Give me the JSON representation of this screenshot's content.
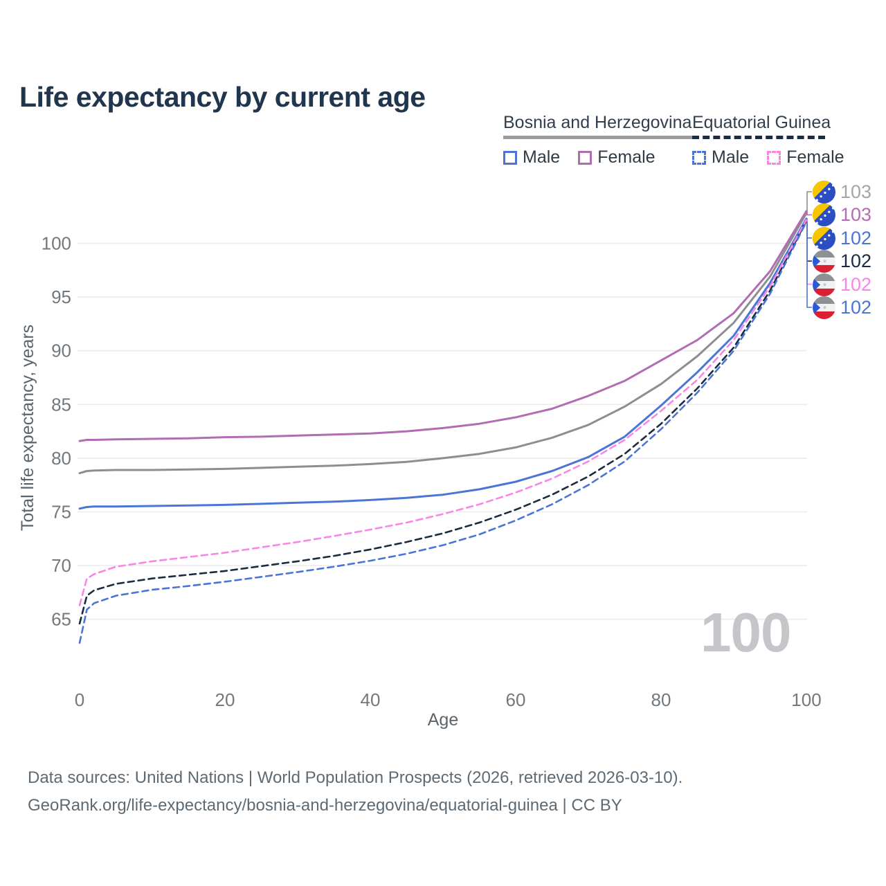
{
  "title": "Life expectancy by current age",
  "watermark": "100",
  "colors": {
    "title_text": "#20364e",
    "bih_male_blue": "#4a75d6",
    "bih_female_purple": "#b26cb2",
    "bih_all_gray": "#8e8e92",
    "eqg_male_blue": "#4a75d6",
    "eqg_female_pink": "#f986e3",
    "eqg_all_navy": "#1b2b40",
    "gridline": "#ececee",
    "tick_text": "#73787d",
    "axis_title_text": "#5c646b",
    "footer_text": "#5d6a73",
    "watermark_text": "#c5c6ca"
  },
  "legend": {
    "groups": [
      {
        "label": "Bosnia and Herzegovina",
        "underline_style": "solid",
        "underline_color": "#9b9ba0",
        "items": [
          {
            "label": "Male",
            "color": "#4a75d6",
            "dashed": false
          },
          {
            "label": "Female",
            "color": "#b26cb2",
            "dashed": false
          }
        ]
      },
      {
        "label": "Equatorial Guinea",
        "underline_style": "dashed",
        "underline_color": "#1b2b40",
        "items": [
          {
            "label": "Male",
            "color": "#4a75d6",
            "dashed": true
          },
          {
            "label": "Female",
            "color": "#f986e3",
            "dashed": true
          }
        ]
      }
    ]
  },
  "end_labels": [
    {
      "value": "103",
      "color": "#a5a5a5",
      "flag": "bosnia-and-herzegovina",
      "series_id": "bih-all"
    },
    {
      "value": "103",
      "color": "#b26cb2",
      "flag": "bosnia-and-herzegovina",
      "series_id": "bih-female"
    },
    {
      "value": "102",
      "color": "#4a75d6",
      "flag": "bosnia-and-herzegovina",
      "series_id": "bih-male"
    },
    {
      "value": "102",
      "color": "#1b2b40",
      "flag": "equatorial-guinea",
      "series_id": "eqg-all"
    },
    {
      "value": "102",
      "color": "#f986e3",
      "flag": "equatorial-guinea",
      "series_id": "eqg-female"
    },
    {
      "value": "102",
      "color": "#4a75d6",
      "flag": "equatorial-guinea",
      "series_id": "eqg-male"
    }
  ],
  "chart_data": {
    "type": "line",
    "title": "Life expectancy by current age",
    "xlabel": "Age",
    "ylabel": "Total life expectancy, years",
    "x_ticks": [
      0,
      20,
      40,
      60,
      80,
      100
    ],
    "y_ticks": [
      65,
      70,
      75,
      80,
      85,
      90,
      95,
      100
    ],
    "xlim": [
      0,
      100
    ],
    "ylim": [
      62,
      104
    ],
    "grid": "horizontal",
    "legend_position": "top-right",
    "x": [
      0,
      1,
      2,
      5,
      10,
      15,
      20,
      25,
      30,
      35,
      40,
      45,
      50,
      55,
      60,
      65,
      70,
      75,
      80,
      85,
      90,
      95,
      100
    ],
    "series": [
      {
        "id": "bih-all",
        "country": "Bosnia and Herzegovina",
        "group": "All",
        "color": "#8e8e92",
        "dashed": false,
        "end_value": 103,
        "values": [
          78.6,
          78.8,
          78.85,
          78.9,
          78.9,
          78.95,
          79.0,
          79.1,
          79.2,
          79.3,
          79.45,
          79.65,
          80.0,
          80.4,
          81.0,
          81.9,
          83.1,
          84.8,
          86.9,
          89.5,
          92.6,
          96.9,
          102.8
        ]
      },
      {
        "id": "bih-female",
        "country": "Bosnia and Herzegovina",
        "group": "Female",
        "color": "#b26cb2",
        "dashed": false,
        "end_value": 103,
        "values": [
          81.6,
          81.7,
          81.7,
          81.75,
          81.8,
          81.85,
          81.95,
          82.0,
          82.1,
          82.2,
          82.3,
          82.5,
          82.8,
          83.2,
          83.8,
          84.6,
          85.8,
          87.2,
          89.1,
          91.0,
          93.5,
          97.4,
          103.0
        ]
      },
      {
        "id": "bih-male",
        "country": "Bosnia and Herzegovina",
        "group": "Male",
        "color": "#4a75d6",
        "dashed": false,
        "end_value": 102,
        "values": [
          75.3,
          75.45,
          75.5,
          75.5,
          75.55,
          75.6,
          75.65,
          75.75,
          75.85,
          75.95,
          76.1,
          76.3,
          76.6,
          77.1,
          77.8,
          78.8,
          80.1,
          82.0,
          84.9,
          88.0,
          91.4,
          96.3,
          102.3
        ]
      },
      {
        "id": "eqg-all",
        "country": "Equatorial Guinea",
        "group": "All",
        "color": "#1b2b40",
        "dashed": true,
        "end_value": 102,
        "values": [
          64.6,
          67.2,
          67.7,
          68.3,
          68.8,
          69.15,
          69.5,
          69.95,
          70.4,
          70.9,
          71.5,
          72.2,
          73.0,
          74.0,
          75.2,
          76.6,
          78.3,
          80.4,
          83.2,
          86.5,
          90.3,
          95.6,
          102.1
        ]
      },
      {
        "id": "eqg-female",
        "country": "Equatorial Guinea",
        "group": "Female",
        "color": "#f986e3",
        "dashed": true,
        "end_value": 102,
        "values": [
          66.3,
          68.8,
          69.2,
          69.9,
          70.4,
          70.8,
          71.2,
          71.7,
          72.2,
          72.75,
          73.35,
          74.0,
          74.8,
          75.7,
          76.8,
          78.1,
          79.7,
          81.7,
          84.4,
          87.3,
          91.0,
          96.0,
          102.2
        ]
      },
      {
        "id": "eqg-male",
        "country": "Equatorial Guinea",
        "group": "Male",
        "color": "#4a75d6",
        "dashed": true,
        "end_value": 102,
        "values": [
          62.8,
          65.9,
          66.5,
          67.2,
          67.75,
          68.1,
          68.5,
          68.95,
          69.4,
          69.9,
          70.45,
          71.1,
          71.9,
          72.9,
          74.2,
          75.7,
          77.5,
          79.7,
          82.7,
          86.1,
          90.0,
          95.3,
          102.0
        ]
      }
    ]
  },
  "footer": {
    "line1": "Data sources: United Nations | World Population Prospects (2026, retrieved 2026-03-10).",
    "line2": "GeoRank.org/life-expectancy/bosnia-and-herzegovina/equatorial-guinea | CC BY"
  }
}
